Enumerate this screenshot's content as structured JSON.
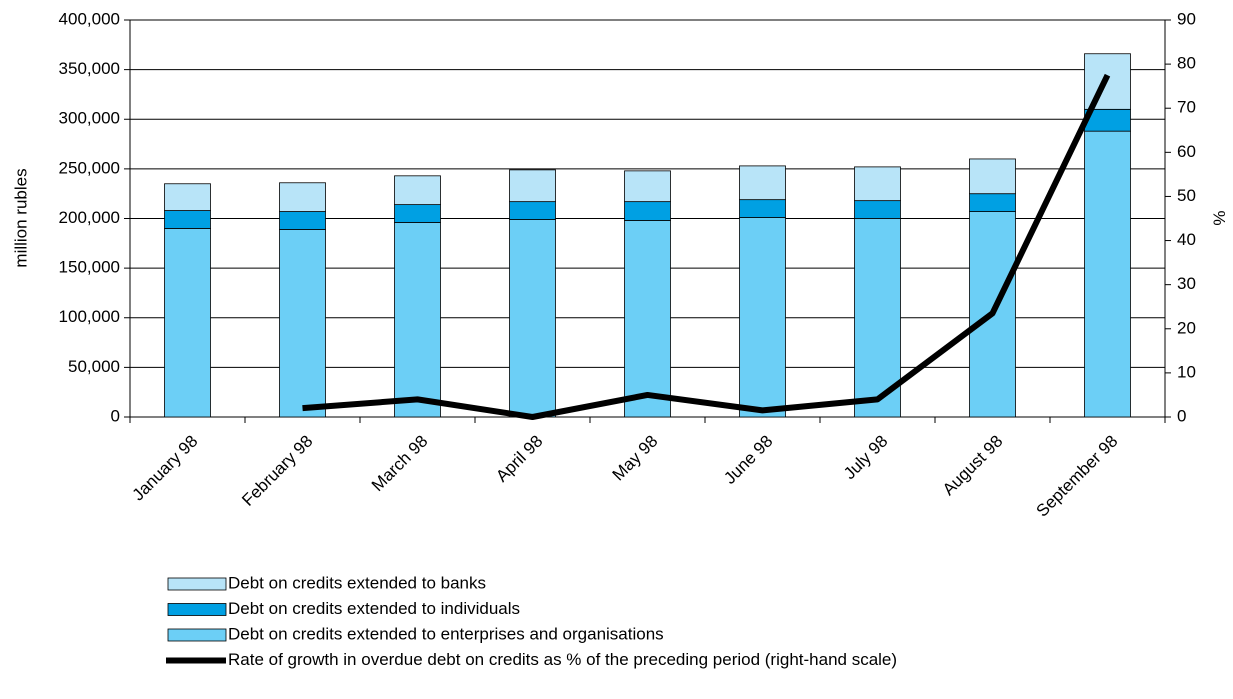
{
  "chart_data": {
    "type": "bar",
    "stacked": true,
    "y_label": "million rubles",
    "y2_label": "%",
    "categories": [
      "January 98",
      "February 98",
      "March 98",
      "April 98",
      "May 98",
      "June 98",
      "July 98",
      "August 98",
      "September 98"
    ],
    "series": [
      {
        "name": "Debt on credits extended to enterprises and organisations",
        "color": "#6ccff6",
        "values": [
          190000,
          189000,
          196000,
          199000,
          198000,
          201000,
          200000,
          207000,
          288000
        ]
      },
      {
        "name": "Debt on credits extended to individuals",
        "color": "#00a0e3",
        "values": [
          18000,
          18000,
          18000,
          18000,
          19000,
          18000,
          18000,
          18000,
          22000
        ]
      },
      {
        "name": "Debt on credits extended to banks",
        "color": "#b8e4f8",
        "values": [
          27000,
          29000,
          29000,
          32000,
          31000,
          34000,
          34000,
          35000,
          56000
        ]
      },
      {
        "name": "Rate of growth in overdue debt on credits as % of the preceding period (right-hand scale)",
        "color": "#000000",
        "type": "line",
        "axis": "y2",
        "values": [
          null,
          2,
          4,
          0,
          5,
          1.5,
          4,
          23.5,
          77.5
        ]
      }
    ],
    "ylim": [
      0,
      400000
    ],
    "yticks": [
      {
        "value": 0,
        "label": "0"
      },
      {
        "value": 50000,
        "label": "50,000"
      },
      {
        "value": 100000,
        "label": "100,000"
      },
      {
        "value": 150000,
        "label": "150,000"
      },
      {
        "value": 200000,
        "label": "200,000"
      },
      {
        "value": 250000,
        "label": "250,000"
      },
      {
        "value": 300000,
        "label": "300,000"
      },
      {
        "value": 350000,
        "label": "350,000"
      },
      {
        "value": 400000,
        "label": "400,000"
      }
    ],
    "y2lim": [
      0,
      90
    ],
    "y2ticks": [
      0,
      10,
      20,
      30,
      40,
      50,
      60,
      70,
      80,
      90
    ],
    "grid": true
  }
}
